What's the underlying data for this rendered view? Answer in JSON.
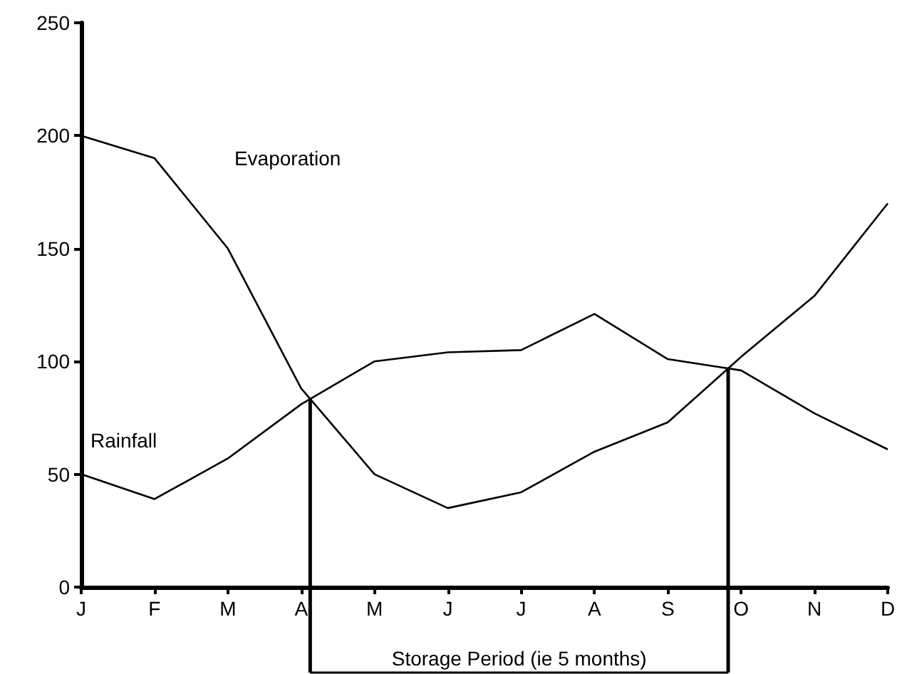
{
  "chart_data": {
    "type": "line",
    "categories": [
      "J",
      "F",
      "M",
      "A",
      "M",
      "J",
      "J",
      "A",
      "S",
      "O",
      "N",
      "D"
    ],
    "ylim": [
      0,
      250
    ],
    "yticks": [
      0,
      50,
      100,
      150,
      200,
      250
    ],
    "series": [
      {
        "name": "Evaporation",
        "color": "#000000",
        "values": [
          200,
          190,
          150,
          88,
          50,
          35,
          42,
          60,
          73,
          102,
          129,
          170
        ]
      },
      {
        "name": "Rainfall",
        "color": "#000000",
        "values": [
          50,
          39,
          57,
          81,
          100,
          104,
          105,
          121,
          101,
          96,
          77,
          61
        ]
      }
    ],
    "annotations": [
      "Storage Period (ie 5 months)"
    ],
    "grid": false,
    "legend": false
  }
}
